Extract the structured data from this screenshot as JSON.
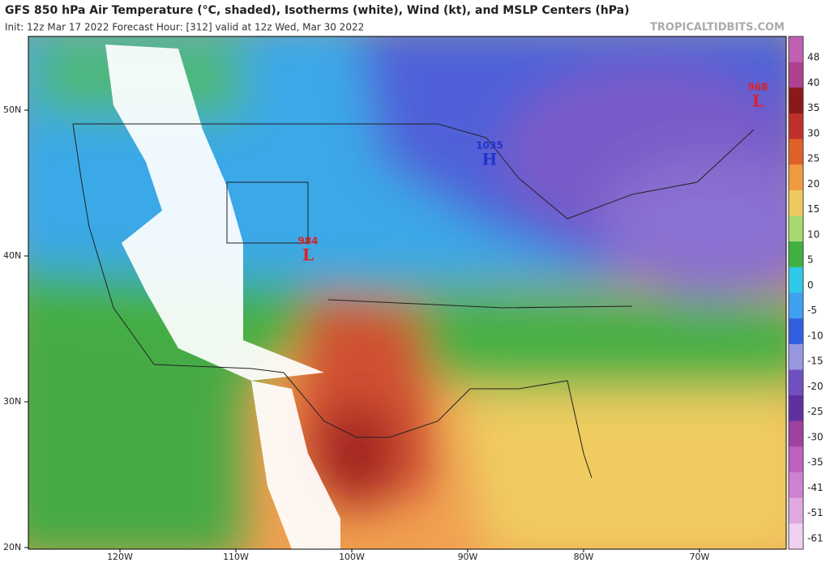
{
  "header": {
    "title": "GFS 850 hPa Air Temperature (°C, shaded), Isotherms (white), Wind (kt), and MSLP Centers (hPa)",
    "subtitle": "Init: 12z Mar 17 2022   Forecast Hour: [312]   valid at 12z Wed, Mar 30 2022",
    "brand": "TROPICALTIDBITS.COM"
  },
  "map": {
    "lat_labels": [
      "50N",
      "40N",
      "30N",
      "20N"
    ],
    "lon_labels": [
      "120W",
      "110W",
      "100W",
      "90W",
      "80W",
      "70W"
    ],
    "pressure_centers": [
      {
        "value": "1035",
        "symbol": "H",
        "color": "#2233cc"
      },
      {
        "value": "984",
        "symbol": "L",
        "color": "#dd2222"
      },
      {
        "value": "968",
        "symbol": "L",
        "color": "#dd2222"
      }
    ]
  },
  "colorbar": {
    "labels": [
      "48",
      "40",
      "35",
      "30",
      "25",
      "20",
      "15",
      "10",
      "5",
      "0",
      "-5",
      "-10",
      "-15",
      "-20",
      "-25",
      "-30",
      "-35",
      "-41",
      "-51",
      "-61"
    ],
    "colors": [
      "#c060b0",
      "#b04090",
      "#8a1a1a",
      "#c0302a",
      "#e0602a",
      "#f09a40",
      "#f0c860",
      "#a8d870",
      "#40b040",
      "#30c8e8",
      "#40a0f0",
      "#3060e0",
      "#9898e0",
      "#7050c0",
      "#6030a0",
      "#a040a0",
      "#c060c0",
      "#d080d0",
      "#e0a8e0",
      "#f0d0f0"
    ]
  }
}
